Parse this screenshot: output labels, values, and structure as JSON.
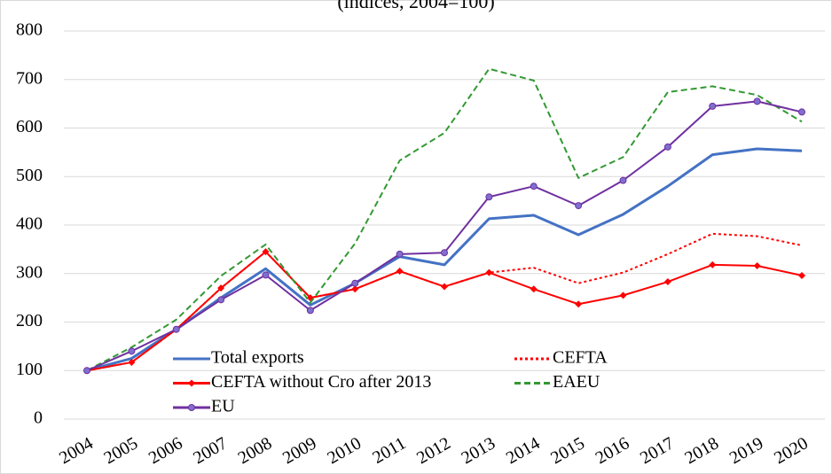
{
  "chart_data": {
    "type": "line",
    "subtitle": "(indices, 2004=100)",
    "categories": [
      "2004",
      "2005",
      "2006",
      "2007",
      "2008",
      "2009",
      "2010",
      "2011",
      "2012",
      "2013",
      "2014",
      "2015",
      "2016",
      "2017",
      "2018",
      "2019",
      "2020"
    ],
    "ylim": [
      0,
      800
    ],
    "yticks": [
      0,
      100,
      200,
      300,
      400,
      500,
      600,
      700,
      800
    ],
    "grid": true,
    "series": [
      {
        "name": "Total exports",
        "color": "#4472c4",
        "dash": "solid",
        "marker": "none",
        "values": [
          100,
          125,
          185,
          250,
          310,
          235,
          280,
          335,
          318,
          413,
          420,
          380,
          422,
          480,
          545,
          557,
          553
        ]
      },
      {
        "name": "CEFTA",
        "color": "#ff0000",
        "dash": "dotted",
        "marker": "none",
        "values": [
          100,
          117,
          185,
          270,
          345,
          250,
          268,
          305,
          273,
          302,
          312,
          280,
          302,
          340,
          382,
          377,
          358
        ]
      },
      {
        "name": "CEFTA without Cro after 2013",
        "color": "#ff0000",
        "dash": "solid",
        "marker": "diamond",
        "values": [
          100,
          117,
          185,
          270,
          345,
          250,
          268,
          305,
          273,
          302,
          268,
          237,
          255,
          283,
          318,
          316,
          296
        ]
      },
      {
        "name": "EAEU",
        "color": "#339933",
        "dash": "dashed",
        "marker": "none",
        "values": [
          100,
          148,
          205,
          295,
          360,
          240,
          362,
          533,
          590,
          722,
          698,
          497,
          540,
          674,
          686,
          668,
          613
        ]
      },
      {
        "name": "EU",
        "color": "#7030a0",
        "dash": "solid",
        "marker": "circle",
        "values": [
          100,
          140,
          185,
          246,
          297,
          224,
          280,
          340,
          343,
          458,
          480,
          440,
          492,
          561,
          645,
          655,
          633
        ]
      }
    ]
  }
}
